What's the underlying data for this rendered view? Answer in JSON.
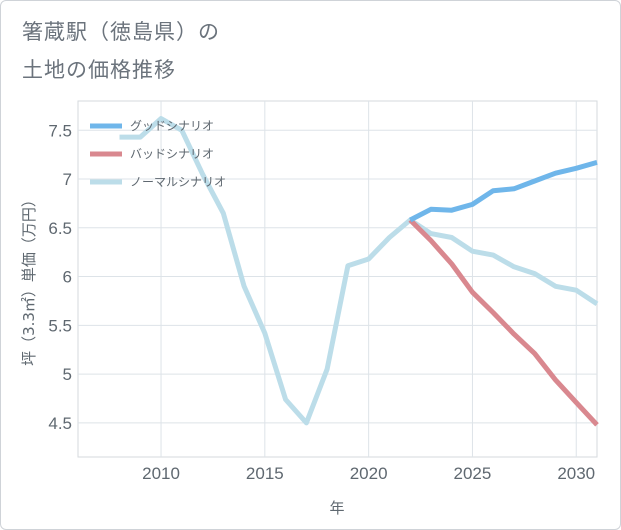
{
  "title_lines": [
    "箸蔵駅（徳島県）の",
    "土地の価格推移"
  ],
  "chart_data": {
    "type": "line",
    "xlabel": "年",
    "ylabel": "坪（3.3㎡）単価（万円）",
    "xlim": [
      2006,
      2031
    ],
    "ylim": [
      4.15,
      7.8
    ],
    "x_ticks": [
      2010,
      2015,
      2020,
      2025,
      2030
    ],
    "x_tick_labels": [
      "2010",
      "2015",
      "2020",
      "2025",
      "2030"
    ],
    "y_ticks": [
      4.5,
      5,
      5.5,
      6,
      6.5,
      7,
      7.5
    ],
    "y_tick_labels": [
      "4.5",
      "5",
      "5.5",
      "6",
      "6.5",
      "7",
      "7.5"
    ],
    "grid": true,
    "legend_position": "top-left",
    "series": [
      {
        "name": "グッドシナリオ",
        "color": "#6fb6ea",
        "x": [
          2022,
          2023,
          2024,
          2025,
          2026,
          2027,
          2028,
          2029,
          2030,
          2031
        ],
        "values": [
          6.58,
          6.69,
          6.68,
          6.74,
          6.88,
          6.9,
          6.98,
          7.06,
          7.11,
          7.17
        ]
      },
      {
        "name": "バッドシナリオ",
        "color": "#d9888f",
        "x": [
          2022,
          2023,
          2024,
          2025,
          2026,
          2027,
          2028,
          2029,
          2030,
          2031
        ],
        "values": [
          6.58,
          6.37,
          6.13,
          5.84,
          5.63,
          5.41,
          5.21,
          4.94,
          4.71,
          4.48
        ]
      },
      {
        "name": "ノーマルシナリオ",
        "color": "#bcdde9",
        "x": [
          2008,
          2009,
          2010,
          2011,
          2012,
          2013,
          2014,
          2015,
          2016,
          2017,
          2018,
          2019,
          2020,
          2021,
          2022,
          2023,
          2024,
          2025,
          2026,
          2027,
          2028,
          2029,
          2030,
          2031
        ],
        "values": [
          7.43,
          7.43,
          7.62,
          7.5,
          7.05,
          6.65,
          5.9,
          5.42,
          4.74,
          4.5,
          5.05,
          6.11,
          6.18,
          6.4,
          6.58,
          6.44,
          6.4,
          6.26,
          6.22,
          6.1,
          6.03,
          5.9,
          5.86,
          5.72
        ]
      }
    ]
  }
}
